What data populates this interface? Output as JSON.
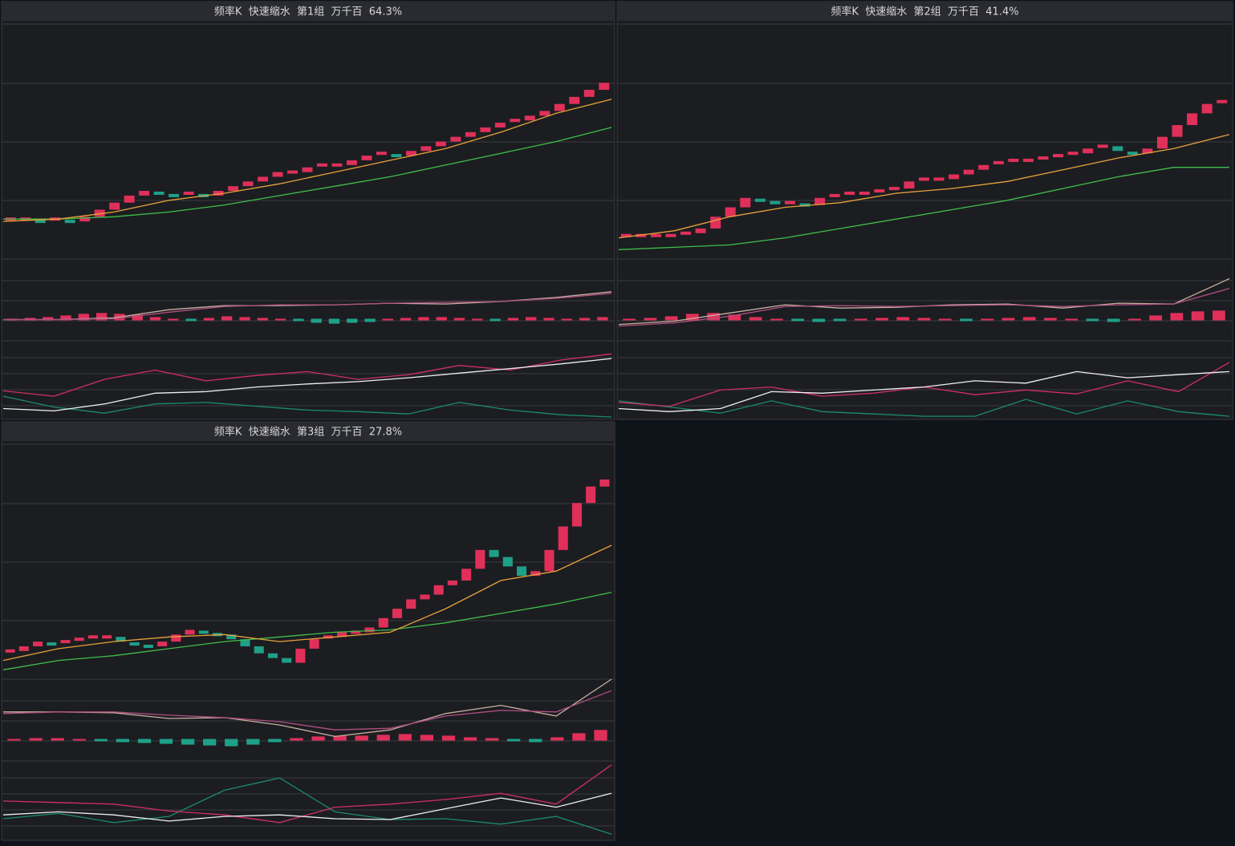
{
  "panels": [
    {
      "title": "频率K  快速缩水  第1组  万千百  64.3%",
      "closes": [
        17,
        17,
        16,
        17,
        16,
        18,
        21,
        24,
        27,
        29,
        28,
        27,
        28,
        27,
        29,
        31,
        33,
        35,
        37,
        37,
        39,
        40,
        40,
        42,
        44,
        45,
        44,
        46,
        48,
        50,
        52,
        54,
        56,
        58,
        59,
        61,
        63,
        66,
        69,
        72,
        75
      ],
      "ma_fast": {
        "color": "#e8a23a",
        "values": [
          16,
          17,
          20,
          25,
          28,
          32,
          37,
          42,
          47,
          54,
          62,
          68
        ]
      },
      "ma_slow": {
        "color": "#3fbf4a",
        "values": [
          17,
          17,
          18,
          20,
          23,
          27,
          31,
          35,
          40,
          45,
          50,
          56
        ]
      },
      "hist": [
        26,
        27,
        28,
        30,
        32,
        33,
        32,
        31,
        28,
        26,
        25,
        27,
        29,
        28,
        27,
        26,
        25,
        23,
        22,
        23,
        24,
        26,
        27,
        28,
        28,
        27,
        26,
        25,
        27,
        28,
        27,
        26,
        27,
        28
      ],
      "dif": {
        "color": "#c8b0a0",
        "values": [
          26,
          26,
          28,
          38,
          43,
          43,
          44,
          46,
          45,
          48,
          53,
          60
        ]
      },
      "dea": {
        "color": "#b05080",
        "values": [
          26,
          26,
          27,
          35,
          42,
          44,
          44,
          46,
          47,
          48,
          52,
          58
        ]
      },
      "k": {
        "color": "#f0f0f0",
        "values": [
          12,
          9,
          18,
          32,
          34,
          40,
          44,
          47,
          52,
          58,
          64,
          70,
          77
        ]
      },
      "d": {
        "color": "#d03060",
        "values": [
          35,
          28,
          50,
          62,
          48,
          55,
          60,
          50,
          56,
          68,
          62,
          75,
          83
        ]
      },
      "j": {
        "color": "#1a8a70",
        "values": [
          28,
          14,
          6,
          18,
          20,
          15,
          10,
          8,
          5,
          20,
          10,
          4,
          1
        ]
      }
    },
    {
      "title": "频率K  快速缩水  第2组  万千百  41.4%",
      "closes": [
        10,
        10,
        10,
        10,
        11,
        13,
        18,
        22,
        26,
        25,
        24,
        24,
        23,
        26,
        27,
        28,
        28,
        29,
        30,
        33,
        34,
        34,
        36,
        38,
        40,
        41,
        42,
        42,
        43,
        44,
        45,
        47,
        48,
        46,
        45,
        47,
        52,
        57,
        62,
        66,
        67
      ],
      "ma_fast": {
        "color": "#e8a23a",
        "values": [
          9,
          12,
          18,
          22,
          24,
          28,
          30,
          33,
          38,
          43,
          47,
          53
        ]
      },
      "ma_slow": {
        "color": "#3fbf4a",
        "values": [
          4,
          5,
          6,
          9,
          13,
          17,
          21,
          25,
          30,
          35,
          39,
          39
        ]
      },
      "hist": [
        26,
        27,
        29,
        32,
        33,
        31,
        28,
        26,
        25,
        24,
        25,
        26,
        27,
        28,
        27,
        26,
        25,
        26,
        27,
        28,
        27,
        26,
        25,
        24,
        26,
        30,
        33,
        35,
        36
      ],
      "dif": {
        "color": "#c8b0a0",
        "values": [
          20,
          24,
          34,
          44,
          40,
          41,
          44,
          45,
          40,
          46,
          45,
          76
        ]
      },
      "dea": {
        "color": "#b05080",
        "values": [
          18,
          22,
          30,
          42,
          43,
          42,
          43,
          44,
          42,
          44,
          45,
          64
        ]
      },
      "k": {
        "color": "#f0f0f0",
        "values": [
          12,
          8,
          12,
          34,
          32,
          36,
          40,
          48,
          45,
          60,
          52,
          56,
          60
        ]
      },
      "d": {
        "color": "#d03060",
        "values": [
          20,
          15,
          36,
          40,
          28,
          32,
          40,
          30,
          36,
          31,
          48,
          34,
          72
        ]
      },
      "j": {
        "color": "#1a8a70",
        "values": [
          22,
          14,
          6,
          22,
          8,
          5,
          2,
          2,
          24,
          5,
          22,
          8,
          2
        ]
      }
    },
    {
      "title": "频率K  快速缩水  第3组  万千百  27.8%",
      "closes": [
        12,
        14,
        16,
        15,
        16,
        17,
        18,
        18,
        16,
        15,
        14,
        16,
        19,
        21,
        20,
        19,
        17,
        14,
        11,
        9,
        7,
        13,
        17,
        18,
        20,
        20,
        22,
        26,
        30,
        34,
        36,
        40,
        42,
        47,
        55,
        52,
        48,
        44,
        46,
        55,
        65,
        75,
        82,
        85
      ],
      "ma_fast": {
        "color": "#e8a23a",
        "values": [
          8,
          13,
          16,
          18,
          19,
          16,
          18,
          20,
          30,
          42,
          46,
          57
        ]
      },
      "ma_slow": {
        "color": "#3fbf4a",
        "values": [
          4,
          8,
          10,
          13,
          16,
          18,
          20,
          21,
          24,
          28,
          32,
          37
        ]
      },
      "hist": [
        26,
        27,
        27,
        26,
        25,
        24,
        23,
        22,
        21,
        20,
        19,
        21,
        24,
        27,
        29,
        30,
        30,
        31,
        32,
        31,
        30,
        28,
        27,
        25,
        24,
        28,
        33,
        37
      ],
      "dif": {
        "color": "#c8b0a0",
        "values": [
          60,
          60,
          59,
          52,
          53,
          44,
          30,
          38,
          58,
          68,
          55,
          100
        ]
      },
      "dea": {
        "color": "#b05080",
        "values": [
          58,
          60,
          60,
          56,
          53,
          48,
          38,
          40,
          55,
          62,
          60,
          86
        ]
      },
      "k": {
        "color": "#f0f0f0",
        "values": [
          30,
          34,
          30,
          22,
          28,
          30,
          25,
          24,
          38,
          52,
          40,
          58
        ]
      },
      "d": {
        "color": "#d03060",
        "values": [
          48,
          46,
          44,
          35,
          30,
          20,
          40,
          44,
          50,
          58,
          44,
          95
        ]
      },
      "j": {
        "color": "#1a8a70",
        "values": [
          25,
          32,
          20,
          28,
          62,
          78,
          34,
          24,
          25,
          18,
          28,
          5
        ]
      }
    }
  ]
}
